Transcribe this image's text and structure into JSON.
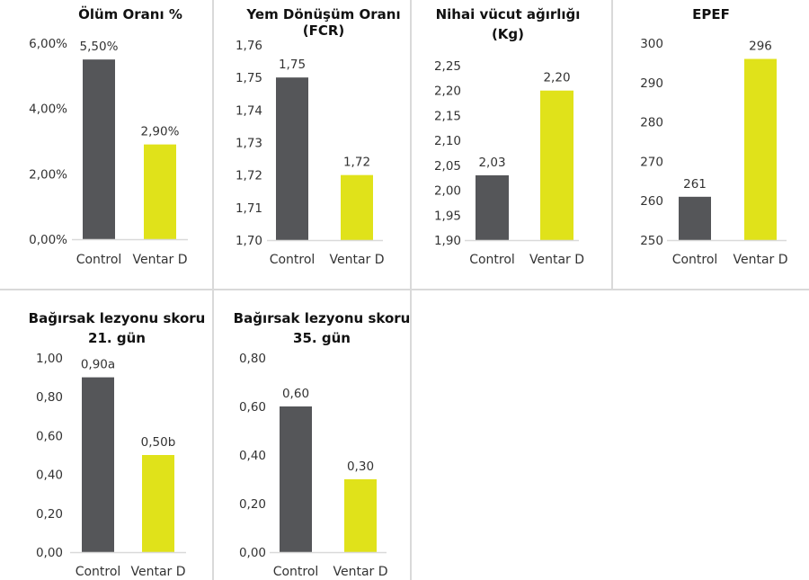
{
  "colors": {
    "control": "#555659",
    "ventar": "#e0e21a",
    "axis": "#d9d9d9"
  },
  "chart_data": [
    {
      "type": "bar",
      "title": [
        "Ölüm Oranı %"
      ],
      "categories": [
        "Control",
        "Ventar D"
      ],
      "values": [
        5.5,
        2.9
      ],
      "data_labels": [
        "5,50%",
        "2,90%"
      ],
      "ylim": [
        0,
        6
      ],
      "yticks": [
        0,
        2,
        4,
        6
      ],
      "ytick_labels": [
        "0,00%",
        "2,00%",
        "4,00%",
        "6,00%"
      ],
      "xlabel": "",
      "ylabel": "",
      "grid": false
    },
    {
      "type": "bar",
      "title": [
        "Yem Dönüşüm Oranı",
        "(FCR)"
      ],
      "categories": [
        "Control",
        "Ventar D"
      ],
      "values": [
        1.75,
        1.72
      ],
      "data_labels": [
        "1,75",
        "1,72"
      ],
      "ylim": [
        1.7,
        1.76
      ],
      "yticks": [
        1.7,
        1.71,
        1.72,
        1.73,
        1.74,
        1.75,
        1.76
      ],
      "ytick_labels": [
        "1,70",
        "1,71",
        "1,72",
        "1,73",
        "1,74",
        "1,75",
        "1,76"
      ],
      "xlabel": "",
      "ylabel": "",
      "grid": false
    },
    {
      "type": "bar",
      "title": [
        "Nihai vücut ağırlığı",
        "(Kg)"
      ],
      "categories": [
        "Control",
        "Ventar D"
      ],
      "values": [
        2.03,
        2.2
      ],
      "data_labels": [
        "2,03",
        "2,20"
      ],
      "ylim": [
        1.9,
        2.25
      ],
      "yticks": [
        1.9,
        1.95,
        2.0,
        2.05,
        2.1,
        2.15,
        2.2,
        2.25
      ],
      "ytick_labels": [
        "1,90",
        "1,95",
        "2,00",
        "2,05",
        "2,10",
        "2,15",
        "2,20",
        "2,25"
      ],
      "xlabel": "",
      "ylabel": "",
      "grid": false
    },
    {
      "type": "bar",
      "title": [
        "EPEF"
      ],
      "categories": [
        "Control",
        "Ventar D"
      ],
      "values": [
        261,
        296
      ],
      "data_labels": [
        "261",
        "296"
      ],
      "ylim": [
        250,
        300
      ],
      "yticks": [
        250,
        260,
        270,
        280,
        290,
        300
      ],
      "ytick_labels": [
        "250",
        "260",
        "270",
        "280",
        "290",
        "300"
      ],
      "xlabel": "",
      "ylabel": "",
      "grid": false
    },
    {
      "type": "bar",
      "title": [
        "Bağırsak lezyonu skoru",
        "21. gün"
      ],
      "categories": [
        "Control",
        "Ventar D"
      ],
      "values": [
        0.9,
        0.5
      ],
      "data_labels": [
        "0,90a",
        "0,50b"
      ],
      "ylim": [
        0,
        1
      ],
      "yticks": [
        0,
        0.2,
        0.4,
        0.6,
        0.8,
        1.0
      ],
      "ytick_labels": [
        "0,00",
        "0,20",
        "0,40",
        "0,60",
        "0,80",
        "1,00"
      ],
      "xlabel": "",
      "ylabel": "",
      "grid": false
    },
    {
      "type": "bar",
      "title": [
        "Bağırsak lezyonu skoru",
        "35. gün"
      ],
      "categories": [
        "Control",
        "Ventar D"
      ],
      "values": [
        0.6,
        0.3
      ],
      "data_labels": [
        "0,60",
        "0,30"
      ],
      "ylim": [
        0,
        0.8
      ],
      "yticks": [
        0,
        0.2,
        0.4,
        0.6,
        0.8
      ],
      "ytick_labels": [
        "0,00",
        "0,20",
        "0,40",
        "0,60",
        "0,80"
      ],
      "xlabel": "",
      "ylabel": "",
      "grid": false
    }
  ]
}
